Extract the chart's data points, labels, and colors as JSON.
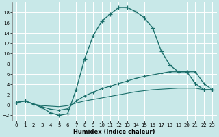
{
  "xlabel": "Humidex (Indice chaleur)",
  "xlim": [
    -0.5,
    23.5
  ],
  "ylim": [
    -3,
    20
  ],
  "yticks": [
    -2,
    0,
    2,
    4,
    6,
    8,
    10,
    12,
    14,
    16,
    18
  ],
  "xticks": [
    0,
    1,
    2,
    3,
    4,
    5,
    6,
    7,
    8,
    9,
    10,
    11,
    12,
    13,
    14,
    15,
    16,
    17,
    18,
    19,
    20,
    21,
    22,
    23
  ],
  "bg_color": "#c8e8e8",
  "grid_color": "#ffffff",
  "line_color": "#1a6e6a",
  "line1_x": [
    0,
    1,
    2,
    3,
    4,
    5,
    6,
    7,
    8,
    9,
    10,
    11,
    12,
    13,
    14,
    15,
    16,
    17,
    18,
    19,
    20,
    21,
    22,
    23
  ],
  "line1_y": [
    0.5,
    0.8,
    0.2,
    -0.5,
    -1.5,
    -2.0,
    -1.7,
    3.0,
    9.0,
    13.5,
    16.3,
    17.7,
    19.0,
    19.0,
    18.2,
    17.0,
    15.0,
    10.5,
    7.8,
    6.5,
    6.5,
    4.2,
    3.0,
    3.0
  ],
  "line2_x": [
    0,
    1,
    2,
    3,
    4,
    5,
    6,
    7,
    8,
    9,
    10,
    11,
    12,
    13,
    14,
    15,
    16,
    17,
    18,
    19,
    20,
    21,
    22,
    23
  ],
  "line2_y": [
    0.5,
    0.8,
    0.2,
    -0.3,
    -0.8,
    -1.0,
    -0.7,
    0.8,
    1.8,
    2.5,
    3.2,
    3.7,
    4.2,
    4.7,
    5.2,
    5.6,
    5.9,
    6.2,
    6.5,
    6.5,
    6.5,
    6.5,
    4.2,
    3.0
  ],
  "line3_x": [
    0,
    1,
    2,
    3,
    4,
    5,
    6,
    7,
    8,
    9,
    10,
    11,
    12,
    13,
    14,
    15,
    16,
    17,
    18,
    19,
    20,
    21,
    22,
    23
  ],
  "line3_y": [
    0.5,
    0.8,
    0.2,
    -0.1,
    -0.2,
    -0.3,
    -0.1,
    0.4,
    0.8,
    1.1,
    1.4,
    1.7,
    2.0,
    2.3,
    2.6,
    2.8,
    3.0,
    3.1,
    3.2,
    3.3,
    3.3,
    3.3,
    3.0,
    3.0
  ]
}
